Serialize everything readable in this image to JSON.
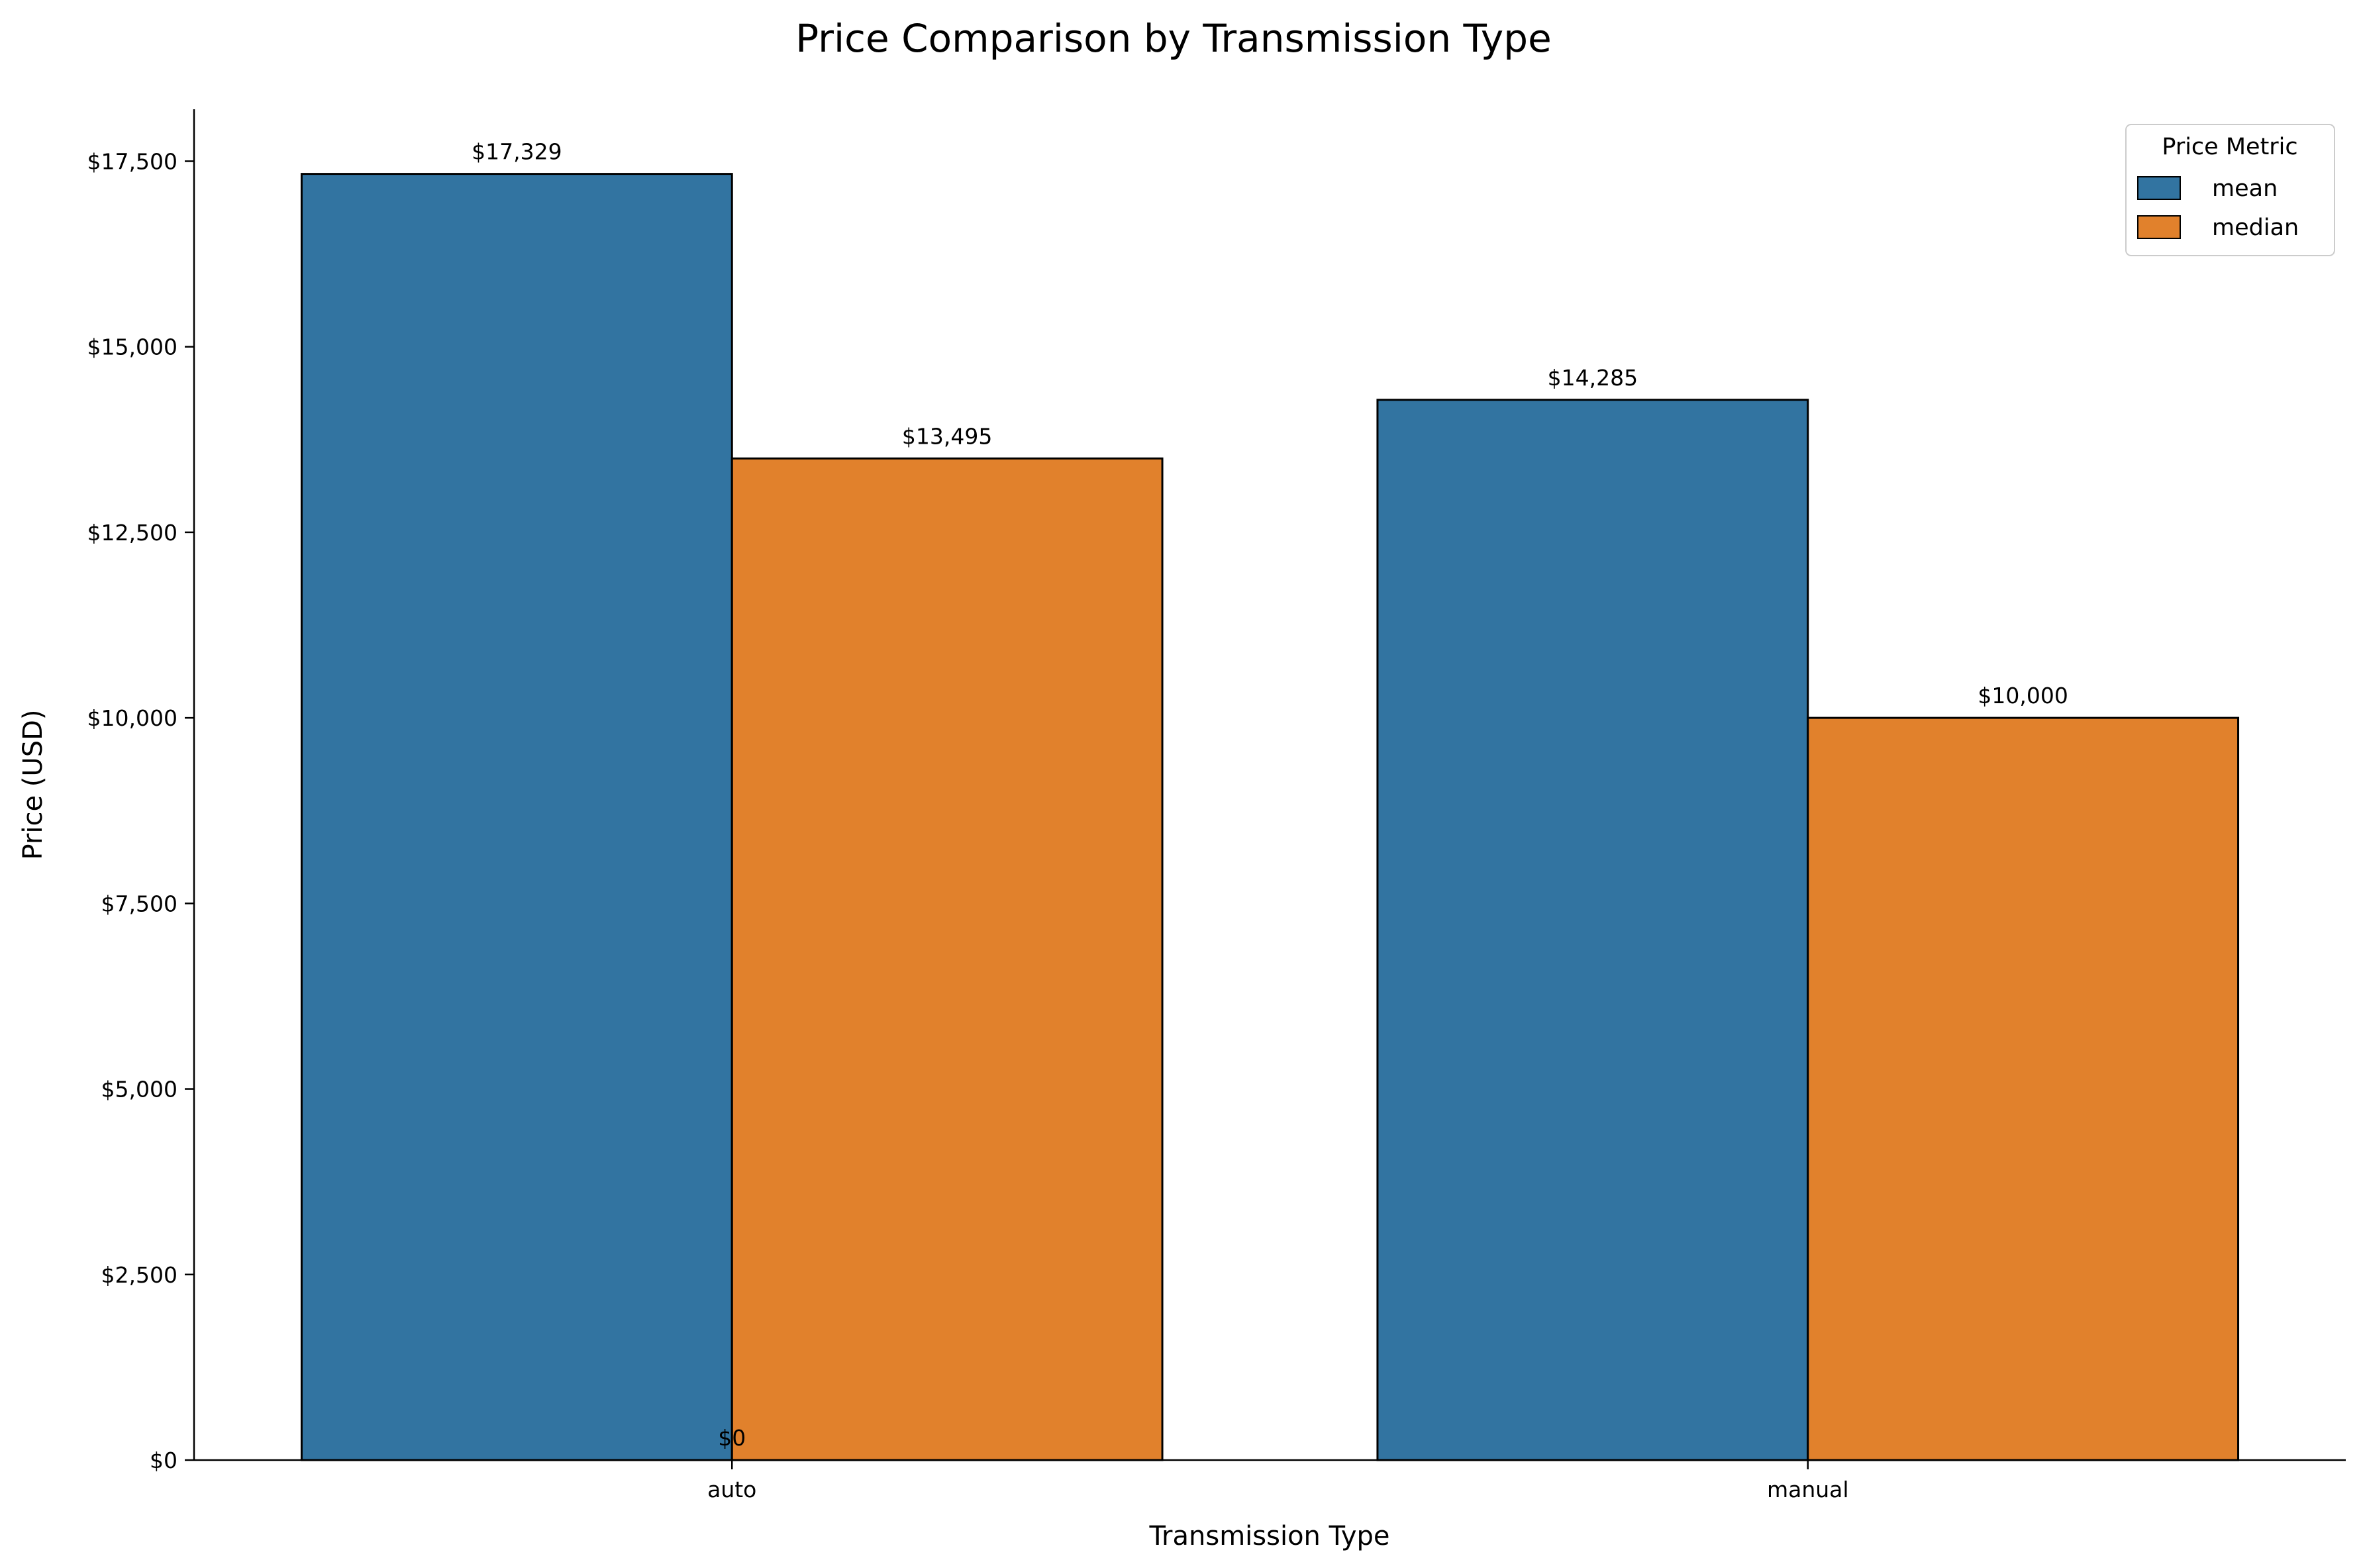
{
  "chart_data": {
    "type": "bar",
    "title": "Price Comparison by Transmission Type",
    "xlabel": "Transmission Type",
    "ylabel": "Price (USD)",
    "categories": [
      "auto",
      "manual"
    ],
    "series": [
      {
        "name": "mean",
        "values": [
          17329,
          14285
        ],
        "labels": [
          "$17,329",
          "$14,285"
        ],
        "color": "#3274a1"
      },
      {
        "name": "median",
        "values": [
          13495,
          10000
        ],
        "labels": [
          "$13,495",
          "$10,000"
        ],
        "color": "#e1812c"
      }
    ],
    "extra_labels": [
      {
        "category": "auto",
        "value": 0,
        "text": "$0"
      }
    ],
    "ylim": [
      0,
      18200
    ],
    "yticks": [
      0,
      2500,
      5000,
      7500,
      10000,
      12500,
      15000,
      17500
    ],
    "ytick_labels": [
      "$0",
      "$2,500",
      "$5,000",
      "$7,500",
      "$10,000",
      "$12,500",
      "$15,000",
      "$17,500"
    ],
    "legend": {
      "title": "Price Metric",
      "placement": "top-right"
    },
    "grid": false
  }
}
